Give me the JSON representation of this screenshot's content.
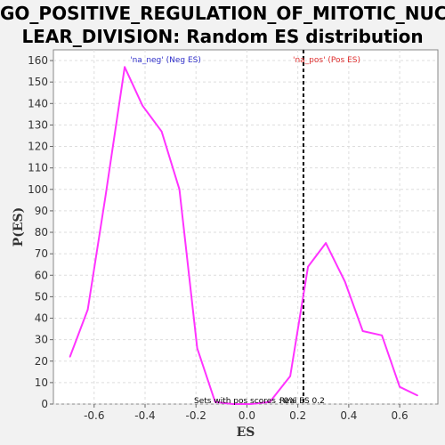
{
  "title_line1": "GO_POSITIVE_REGULATION_OF_MITOTIC_NUC",
  "title_line2": "LEAR_DIVISION: Random ES distribution",
  "colors": {
    "line": "#ff33ff",
    "neg_label": "#3333cc",
    "pos_label": "#e03030",
    "grid": "#dddddd",
    "plot_bg": "#ffffff",
    "vline": "#000000"
  },
  "annotations": {
    "neg_label": "'na_neg' (Neg ES)",
    "pos_label": "'na_pos' (Pos ES)",
    "bottom_left": "Sets with pos scores : 0%",
    "bottom_right": "Real ES 0.2"
  },
  "chart_data": {
    "type": "line",
    "title": "GO_POSITIVE_REGULATION_OF_MITOTIC_NUCLEAR_DIVISION: Random ES distribution",
    "xlabel": "ES",
    "ylabel": "P(ES)",
    "xlim": [
      -0.76,
      0.75
    ],
    "ylim": [
      0,
      165
    ],
    "xticks": [
      -0.6,
      -0.4,
      -0.2,
      0.0,
      0.2,
      0.4,
      0.6
    ],
    "xtick_labels": [
      "-0.6",
      "-0.4",
      "-0.2",
      "0.0",
      "0.2",
      "0.4",
      "0.6"
    ],
    "yticks": [
      0,
      10,
      20,
      30,
      40,
      50,
      60,
      70,
      80,
      90,
      100,
      110,
      120,
      130,
      140,
      150,
      160
    ],
    "grid": true,
    "real_es": 0.222,
    "series": [
      {
        "x": [
          -0.695,
          -0.625,
          -0.555,
          -0.48,
          -0.41,
          -0.335,
          -0.265,
          -0.195,
          -0.125,
          -0.055,
          0.015,
          0.09,
          0.17,
          0.24,
          0.31,
          0.385,
          0.455,
          0.53,
          0.6,
          0.67
        ],
        "y": [
          22,
          44,
          97,
          157,
          139,
          127,
          100,
          26,
          1,
          0,
          0,
          1,
          13,
          64,
          75,
          57,
          34,
          32,
          8,
          4
        ]
      }
    ]
  }
}
